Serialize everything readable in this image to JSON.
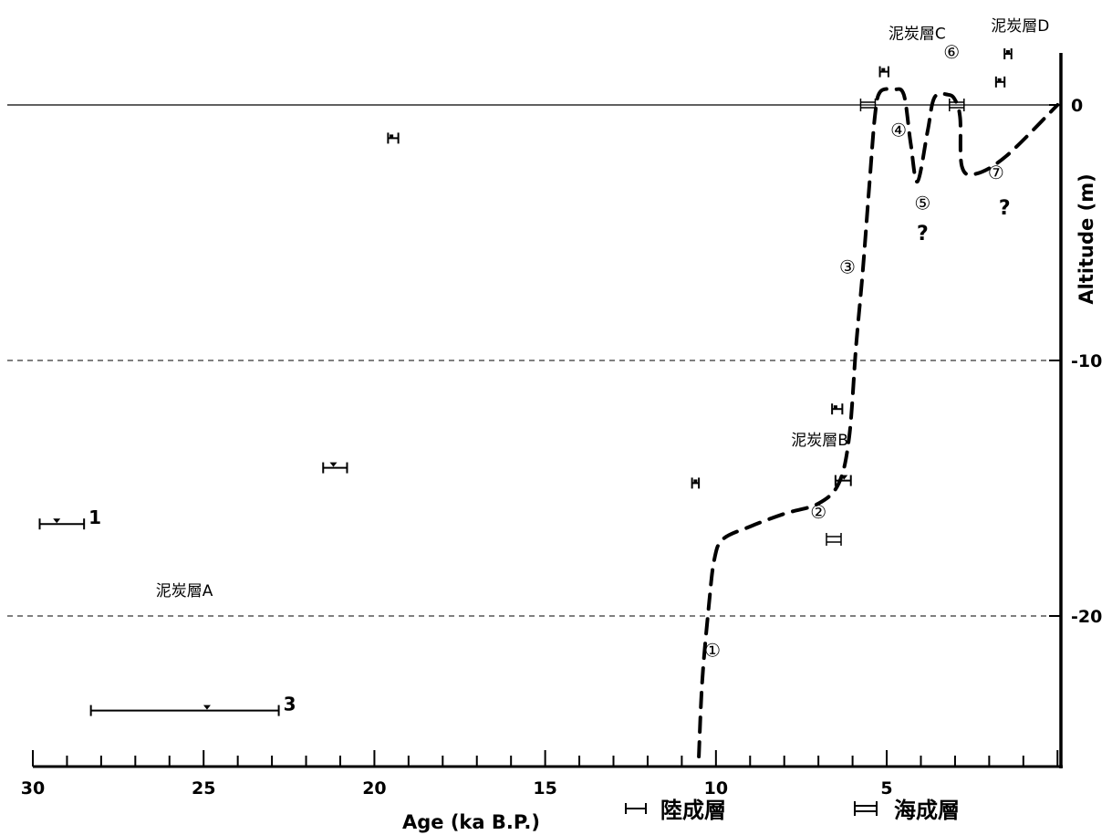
{
  "chart_data": {
    "type": "line",
    "xlabel": "Age (ka B.P.)",
    "ylabel": "Altitude (m)",
    "xlim": [
      30,
      -0.1
    ],
    "ylim": [
      -26,
      2
    ],
    "x_ticks": [
      30,
      25,
      20,
      15,
      10,
      5
    ],
    "x_tick_labels": [
      "30",
      "25",
      "20",
      "15",
      "10",
      "5"
    ],
    "y_ticks": [
      0,
      -10,
      -20
    ],
    "y_tick_labels": [
      "0",
      "-10",
      "-20"
    ],
    "gridlines_y": [
      {
        "value": 0,
        "style": "solid"
      },
      {
        "value": -10,
        "style": "dashed"
      },
      {
        "value": -20,
        "style": "dashed"
      }
    ],
    "sea_level_curve": [
      {
        "x": 10.5,
        "y": -25.5
      },
      {
        "x": 10.4,
        "y": -22.5
      },
      {
        "x": 10.2,
        "y": -19.5
      },
      {
        "x": 10.05,
        "y": -17.8
      },
      {
        "x": 9.8,
        "y": -17.0
      },
      {
        "x": 9.0,
        "y": -16.5
      },
      {
        "x": 8.0,
        "y": -16.0
      },
      {
        "x": 7.0,
        "y": -15.6
      },
      {
        "x": 6.4,
        "y": -14.8
      },
      {
        "x": 6.1,
        "y": -13.0
      },
      {
        "x": 5.9,
        "y": -9.5
      },
      {
        "x": 5.7,
        "y": -6.5
      },
      {
        "x": 5.5,
        "y": -3.0
      },
      {
        "x": 5.35,
        "y": -0.5
      },
      {
        "x": 5.2,
        "y": 0.5
      },
      {
        "x": 4.8,
        "y": 0.6
      },
      {
        "x": 4.5,
        "y": 0.4
      },
      {
        "x": 4.3,
        "y": -1.5
      },
      {
        "x": 4.1,
        "y": -3.0
      },
      {
        "x": 3.8,
        "y": -1.0
      },
      {
        "x": 3.6,
        "y": 0.3
      },
      {
        "x": 3.2,
        "y": 0.4
      },
      {
        "x": 3.0,
        "y": 0.2
      },
      {
        "x": 2.85,
        "y": -0.5
      },
      {
        "x": 2.8,
        "y": -2.4
      },
      {
        "x": 2.4,
        "y": -2.7
      },
      {
        "x": 1.5,
        "y": -2.0
      },
      {
        "x": 0.0,
        "y": 0.0
      }
    ],
    "stages": [
      {
        "label": "①",
        "x": 10.1,
        "y": -21.3
      },
      {
        "label": "②",
        "x": 7.0,
        "y": -15.9
      },
      {
        "label": "③",
        "x": 6.15,
        "y": -6.3
      },
      {
        "label": "④",
        "x": 4.65,
        "y": -0.95
      },
      {
        "label": "⑤",
        "x": 3.95,
        "y": -3.8
      },
      {
        "label": "⑥",
        "x": 3.1,
        "y": 2.1
      },
      {
        "label": "⑦",
        "x": 1.8,
        "y": -2.6
      }
    ],
    "question_marks": [
      {
        "label": "?",
        "x": 3.95,
        "y": -5.0
      },
      {
        "label": "?",
        "x": 1.55,
        "y": -4.0
      }
    ],
    "terrestrial_samples": [
      {
        "x": 29.3,
        "x_err": [
          29.8,
          28.5
        ],
        "y": -16.4,
        "label": "1",
        "marker": "triangle"
      },
      {
        "x": 21.2,
        "x_err": [
          21.5,
          20.8
        ],
        "y": -14.2,
        "label": "",
        "marker": "triangle"
      },
      {
        "x": 19.5,
        "x_err": [
          19.6,
          19.3
        ],
        "y": -1.3,
        "label": "",
        "marker": "dot"
      },
      {
        "x": 24.9,
        "x_err": [
          28.3,
          22.8
        ],
        "y": -23.7,
        "label": "3",
        "marker": "triangle"
      },
      {
        "x": 10.6,
        "x_err": [
          10.7,
          10.5
        ],
        "y": -14.8,
        "label": "",
        "marker": "dot"
      },
      {
        "x": 6.5,
        "x_err": [
          6.6,
          6.3
        ],
        "y": -11.9,
        "label": "",
        "marker": "dot"
      },
      {
        "x": 6.25,
        "x_err": [
          6.5,
          6.05
        ],
        "y": -14.7,
        "label": "",
        "marker": "triangle"
      },
      {
        "x": 5.1,
        "x_err": [
          5.2,
          4.95
        ],
        "y": 1.3,
        "label": "",
        "marker": "dot"
      },
      {
        "x": 1.7,
        "x_err": [
          1.8,
          1.55
        ],
        "y": 0.9,
        "label": "",
        "marker": "dot"
      },
      {
        "x": 1.45,
        "x_err": [
          1.55,
          1.35
        ],
        "y": 2.0,
        "label": "",
        "marker": "dot"
      }
    ],
    "marine_samples": [
      {
        "x": 6.55,
        "y": -17.0
      },
      {
        "x": 5.55,
        "y": 0.0
      },
      {
        "x": 2.95,
        "y": 0.0
      }
    ],
    "peat_layers": [
      {
        "label": "泥炭層A",
        "x": 26.4,
        "y": -19.0
      },
      {
        "label": "泥炭層B",
        "x": 7.8,
        "y": -13.1
      },
      {
        "label": "泥炭層C",
        "x": 4.95,
        "y": 2.8
      },
      {
        "label": "泥炭層D",
        "x": 1.95,
        "y": 3.1
      }
    ],
    "legend": [
      {
        "symbol": "terrestrial",
        "label": "陸成層"
      },
      {
        "symbol": "marine",
        "label": "海成層"
      }
    ],
    "legend_position": "bottom-right"
  }
}
